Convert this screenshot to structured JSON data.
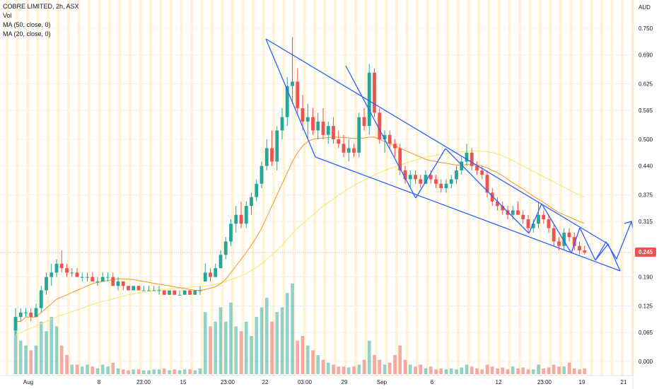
{
  "legend": {
    "title": "COBRE LIMITED, 2h, ASX",
    "vol": "Vol",
    "ma50": "MA (50, close, 0)",
    "ma20": "MA (20, close, 0)"
  },
  "currency": "AUD",
  "last_price": "0.245",
  "colors": {
    "up": "#26a69a",
    "down": "#ef5350",
    "up_vol": "#26a69a",
    "down_vol": "#ef5350",
    "ma20": "#f7931e",
    "ma50": "#f5e663",
    "pattern": "#2962ff",
    "session": "#fff3d6"
  },
  "chart_data": {
    "type": "candlestick",
    "title": "COBRE LIMITED, 2h, ASX",
    "ylabel": "AUD",
    "y_ticks": [
      "0.750",
      "0.690",
      "0.625",
      "0.565",
      "0.500",
      "0.440",
      "0.375",
      "0.315",
      "0.245",
      "0.190",
      "0.125",
      "0.065",
      "0.000"
    ],
    "x_ticks": [
      "Aug",
      "8",
      "23:00",
      "15",
      "23:00",
      "22",
      "03:00",
      "29",
      "Sep",
      "6",
      "12",
      "23:00",
      "19",
      "21"
    ],
    "ylim": [
      -0.035,
      0.79
    ],
    "n_bars": 112,
    "ohlc": [
      [
        0.07,
        0.12,
        0.06,
        0.1
      ],
      [
        0.1,
        0.12,
        0.09,
        0.11
      ],
      [
        0.11,
        0.12,
        0.1,
        0.11
      ],
      [
        0.11,
        0.12,
        0.09,
        0.1
      ],
      [
        0.1,
        0.13,
        0.1,
        0.12
      ],
      [
        0.12,
        0.17,
        0.11,
        0.16
      ],
      [
        0.16,
        0.2,
        0.15,
        0.19
      ],
      [
        0.19,
        0.22,
        0.17,
        0.2
      ],
      [
        0.2,
        0.23,
        0.19,
        0.22
      ],
      [
        0.22,
        0.25,
        0.2,
        0.21
      ],
      [
        0.21,
        0.22,
        0.19,
        0.2
      ],
      [
        0.2,
        0.21,
        0.19,
        0.2
      ],
      [
        0.2,
        0.21,
        0.19,
        0.19
      ],
      [
        0.19,
        0.2,
        0.18,
        0.19
      ],
      [
        0.19,
        0.2,
        0.18,
        0.19
      ],
      [
        0.19,
        0.2,
        0.18,
        0.18
      ],
      [
        0.18,
        0.19,
        0.17,
        0.18
      ],
      [
        0.18,
        0.2,
        0.18,
        0.19
      ],
      [
        0.19,
        0.2,
        0.18,
        0.19
      ],
      [
        0.19,
        0.2,
        0.17,
        0.17
      ],
      [
        0.17,
        0.19,
        0.16,
        0.18
      ],
      [
        0.18,
        0.18,
        0.16,
        0.17
      ],
      [
        0.17,
        0.17,
        0.16,
        0.16
      ],
      [
        0.16,
        0.17,
        0.16,
        0.17
      ],
      [
        0.17,
        0.17,
        0.16,
        0.16
      ],
      [
        0.16,
        0.17,
        0.16,
        0.16
      ],
      [
        0.16,
        0.17,
        0.16,
        0.16
      ],
      [
        0.16,
        0.17,
        0.16,
        0.16
      ],
      [
        0.16,
        0.17,
        0.15,
        0.16
      ],
      [
        0.16,
        0.16,
        0.15,
        0.15
      ],
      [
        0.15,
        0.16,
        0.15,
        0.16
      ],
      [
        0.16,
        0.16,
        0.15,
        0.15
      ],
      [
        0.15,
        0.16,
        0.15,
        0.15
      ],
      [
        0.15,
        0.16,
        0.15,
        0.16
      ],
      [
        0.16,
        0.16,
        0.15,
        0.15
      ],
      [
        0.15,
        0.16,
        0.15,
        0.16
      ],
      [
        0.16,
        0.17,
        0.15,
        0.16
      ],
      [
        0.18,
        0.22,
        0.18,
        0.2
      ],
      [
        0.2,
        0.21,
        0.18,
        0.19
      ],
      [
        0.19,
        0.22,
        0.19,
        0.21
      ],
      [
        0.21,
        0.25,
        0.21,
        0.24
      ],
      [
        0.24,
        0.28,
        0.23,
        0.27
      ],
      [
        0.27,
        0.32,
        0.26,
        0.31
      ],
      [
        0.31,
        0.35,
        0.29,
        0.33
      ],
      [
        0.33,
        0.36,
        0.3,
        0.31
      ],
      [
        0.31,
        0.36,
        0.3,
        0.35
      ],
      [
        0.35,
        0.38,
        0.33,
        0.37
      ],
      [
        0.37,
        0.41,
        0.36,
        0.4
      ],
      [
        0.4,
        0.45,
        0.39,
        0.44
      ],
      [
        0.44,
        0.5,
        0.43,
        0.48
      ],
      [
        0.48,
        0.52,
        0.44,
        0.45
      ],
      [
        0.45,
        0.53,
        0.43,
        0.52
      ],
      [
        0.52,
        0.57,
        0.5,
        0.55
      ],
      [
        0.55,
        0.64,
        0.53,
        0.62
      ],
      [
        0.62,
        0.73,
        0.58,
        0.63
      ],
      [
        0.63,
        0.66,
        0.56,
        0.57
      ],
      [
        0.57,
        0.6,
        0.52,
        0.54
      ],
      [
        0.54,
        0.58,
        0.5,
        0.55
      ],
      [
        0.55,
        0.57,
        0.51,
        0.52
      ],
      [
        0.52,
        0.56,
        0.5,
        0.54
      ],
      [
        0.54,
        0.57,
        0.5,
        0.51
      ],
      [
        0.51,
        0.54,
        0.49,
        0.53
      ],
      [
        0.53,
        0.55,
        0.49,
        0.5
      ],
      [
        0.5,
        0.52,
        0.48,
        0.49
      ],
      [
        0.49,
        0.51,
        0.46,
        0.47
      ],
      [
        0.47,
        0.5,
        0.45,
        0.48
      ],
      [
        0.48,
        0.49,
        0.46,
        0.47
      ],
      [
        0.47,
        0.56,
        0.46,
        0.55
      ],
      [
        0.55,
        0.57,
        0.52,
        0.53
      ],
      [
        0.53,
        0.67,
        0.51,
        0.65
      ],
      [
        0.65,
        0.66,
        0.55,
        0.56
      ],
      [
        0.56,
        0.57,
        0.49,
        0.5
      ],
      [
        0.5,
        0.52,
        0.47,
        0.51
      ],
      [
        0.51,
        0.52,
        0.48,
        0.49
      ],
      [
        0.49,
        0.5,
        0.46,
        0.48
      ],
      [
        0.48,
        0.49,
        0.42,
        0.43
      ],
      [
        0.43,
        0.44,
        0.4,
        0.41
      ],
      [
        0.41,
        0.43,
        0.39,
        0.42
      ],
      [
        0.42,
        0.43,
        0.4,
        0.41
      ],
      [
        0.41,
        0.42,
        0.39,
        0.4
      ],
      [
        0.4,
        0.43,
        0.4,
        0.42
      ],
      [
        0.42,
        0.43,
        0.4,
        0.41
      ],
      [
        0.41,
        0.42,
        0.39,
        0.4
      ],
      [
        0.4,
        0.41,
        0.38,
        0.39
      ],
      [
        0.39,
        0.41,
        0.38,
        0.4
      ],
      [
        0.4,
        0.42,
        0.39,
        0.41
      ],
      [
        0.41,
        0.44,
        0.4,
        0.43
      ],
      [
        0.43,
        0.46,
        0.42,
        0.45
      ],
      [
        0.45,
        0.49,
        0.44,
        0.47
      ],
      [
        0.47,
        0.48,
        0.43,
        0.44
      ],
      [
        0.44,
        0.45,
        0.42,
        0.43
      ],
      [
        0.43,
        0.44,
        0.41,
        0.42
      ],
      [
        0.42,
        0.43,
        0.37,
        0.38
      ],
      [
        0.38,
        0.39,
        0.35,
        0.36
      ],
      [
        0.36,
        0.37,
        0.34,
        0.35
      ],
      [
        0.35,
        0.36,
        0.33,
        0.34
      ],
      [
        0.34,
        0.35,
        0.32,
        0.33
      ],
      [
        0.33,
        0.35,
        0.32,
        0.34
      ],
      [
        0.34,
        0.36,
        0.33,
        0.33
      ],
      [
        0.33,
        0.34,
        0.31,
        0.32
      ],
      [
        0.32,
        0.33,
        0.29,
        0.3
      ],
      [
        0.3,
        0.32,
        0.29,
        0.31
      ],
      [
        0.31,
        0.36,
        0.3,
        0.33
      ],
      [
        0.33,
        0.34,
        0.31,
        0.32
      ],
      [
        0.32,
        0.33,
        0.29,
        0.3
      ],
      [
        0.3,
        0.31,
        0.26,
        0.27
      ],
      [
        0.27,
        0.28,
        0.25,
        0.26
      ],
      [
        0.26,
        0.3,
        0.25,
        0.29
      ],
      [
        0.29,
        0.3,
        0.27,
        0.28
      ],
      [
        0.28,
        0.29,
        0.25,
        0.26
      ],
      [
        0.26,
        0.27,
        0.24,
        0.25
      ],
      [
        0.25,
        0.26,
        0.24,
        0.245
      ]
    ],
    "volume": [
      0.6,
      0.35,
      0.3,
      0.25,
      0.3,
      0.55,
      0.45,
      0.6,
      0.5,
      0.3,
      0.2,
      0.1,
      0.1,
      0.08,
      0.1,
      0.08,
      0.06,
      0.1,
      0.08,
      0.12,
      0.06,
      0.05,
      0.04,
      0.05,
      0.05,
      0.04,
      0.04,
      0.05,
      0.05,
      0.06,
      0.04,
      0.05,
      0.04,
      0.05,
      0.05,
      0.04,
      0.06,
      0.65,
      0.5,
      0.55,
      0.7,
      0.55,
      0.75,
      0.5,
      0.45,
      0.55,
      0.4,
      0.6,
      0.7,
      0.8,
      0.55,
      0.65,
      0.7,
      0.85,
      0.95,
      0.35,
      0.4,
      0.3,
      0.25,
      0.2,
      0.15,
      0.12,
      0.1,
      0.08,
      0.08,
      0.07,
      0.08,
      0.1,
      0.15,
      0.35,
      0.2,
      0.15,
      0.1,
      0.12,
      0.2,
      0.3,
      0.15,
      0.1,
      0.08,
      0.1,
      0.06,
      0.08,
      0.05,
      0.06,
      0.05,
      0.06,
      0.05,
      0.07,
      0.1,
      0.08,
      0.06,
      0.05,
      0.1,
      0.08,
      0.06,
      0.07,
      0.05,
      0.08,
      0.06,
      0.07,
      0.05,
      0.05,
      0.1,
      0.06,
      0.07,
      0.1,
      0.08,
      0.08,
      0.12,
      0.06,
      0.05,
      0.06
    ],
    "ma20": [
      0.09,
      0.09,
      0.1,
      0.1,
      0.1,
      0.11,
      0.12,
      0.13,
      0.14,
      0.145,
      0.15,
      0.155,
      0.16,
      0.165,
      0.17,
      0.175,
      0.178,
      0.18,
      0.182,
      0.184,
      0.186,
      0.186,
      0.185,
      0.184,
      0.182,
      0.18,
      0.178,
      0.176,
      0.174,
      0.172,
      0.17,
      0.168,
      0.166,
      0.164,
      0.162,
      0.16,
      0.16,
      0.162,
      0.165,
      0.168,
      0.175,
      0.185,
      0.2,
      0.215,
      0.23,
      0.245,
      0.262,
      0.28,
      0.3,
      0.325,
      0.35,
      0.375,
      0.4,
      0.425,
      0.45,
      0.47,
      0.485,
      0.495,
      0.5,
      0.502,
      0.503,
      0.504,
      0.505,
      0.505,
      0.504,
      0.503,
      0.502,
      0.502,
      0.503,
      0.505,
      0.505,
      0.5,
      0.495,
      0.49,
      0.485,
      0.48,
      0.475,
      0.47,
      0.465,
      0.46,
      0.455,
      0.452,
      0.45,
      0.448,
      0.446,
      0.444,
      0.442,
      0.442,
      0.443,
      0.443,
      0.442,
      0.44,
      0.436,
      0.43,
      0.425,
      0.418,
      0.41,
      0.402,
      0.395,
      0.388,
      0.38,
      0.372,
      0.365,
      0.358,
      0.35,
      0.342,
      0.335,
      0.33,
      0.325,
      0.32,
      0.315,
      0.311
    ],
    "ma50": [
      0.06,
      0.065,
      0.07,
      0.075,
      0.08,
      0.085,
      0.09,
      0.095,
      0.1,
      0.105,
      0.108,
      0.112,
      0.116,
      0.12,
      0.124,
      0.128,
      0.132,
      0.135,
      0.138,
      0.141,
      0.144,
      0.147,
      0.15,
      0.152,
      0.154,
      0.156,
      0.158,
      0.16,
      0.161,
      0.162,
      0.163,
      0.164,
      0.165,
      0.166,
      0.167,
      0.168,
      0.168,
      0.17,
      0.172,
      0.174,
      0.177,
      0.18,
      0.184,
      0.188,
      0.193,
      0.198,
      0.205,
      0.212,
      0.22,
      0.23,
      0.24,
      0.25,
      0.262,
      0.275,
      0.288,
      0.3,
      0.31,
      0.32,
      0.33,
      0.34,
      0.35,
      0.358,
      0.366,
      0.374,
      0.382,
      0.39,
      0.396,
      0.402,
      0.408,
      0.414,
      0.42,
      0.425,
      0.43,
      0.434,
      0.438,
      0.442,
      0.446,
      0.45,
      0.453,
      0.456,
      0.459,
      0.462,
      0.464,
      0.466,
      0.468,
      0.47,
      0.471,
      0.472,
      0.473,
      0.474,
      0.474,
      0.473,
      0.472,
      0.47,
      0.467,
      0.463,
      0.458,
      0.452,
      0.446,
      0.44,
      0.434,
      0.428,
      0.422,
      0.416,
      0.41,
      0.404,
      0.398,
      0.392,
      0.386,
      0.38,
      0.375,
      0.37
    ]
  }
}
